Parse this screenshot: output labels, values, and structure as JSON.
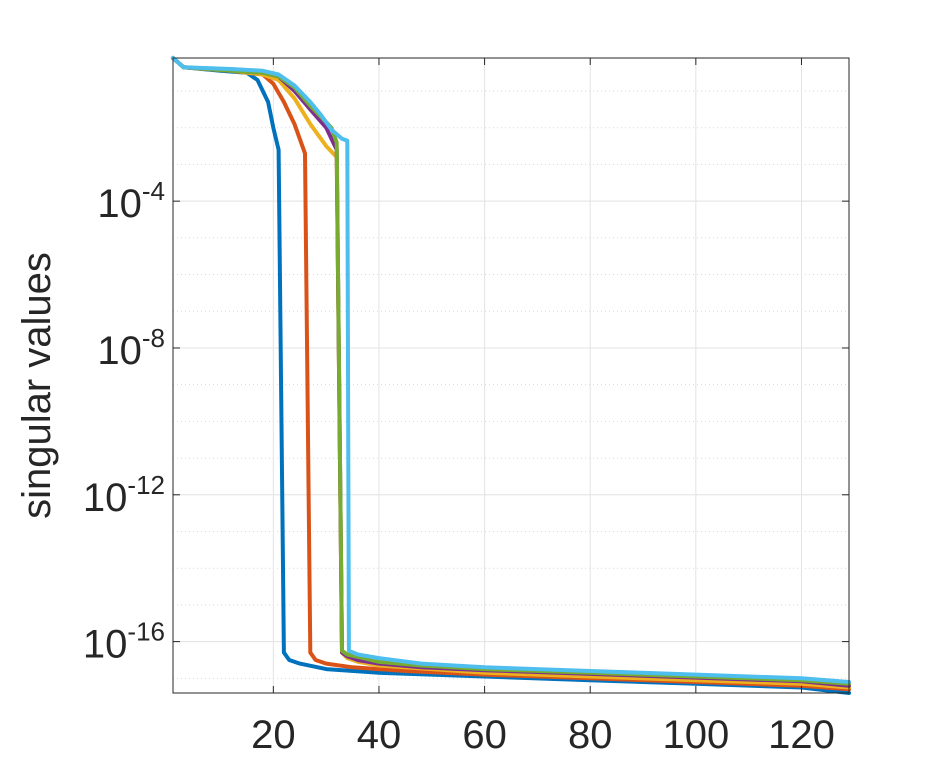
{
  "chart_data": {
    "type": "line",
    "title": "",
    "xlabel": "",
    "ylabel": "singular values",
    "xlim": [
      1,
      129
    ],
    "ylim_log10": [
      -17.4,
      -0.1
    ],
    "y_scale": "log",
    "grid": true,
    "minor_grid": true,
    "box": true,
    "x_ticks": [
      20,
      40,
      60,
      80,
      100,
      120
    ],
    "y_ticks": [
      {
        "value": -4,
        "base": "10",
        "exp": "-4"
      },
      {
        "value": -8,
        "base": "10",
        "exp": "-8"
      },
      {
        "value": -12,
        "base": "10",
        "exp": "-12"
      },
      {
        "value": -16,
        "base": "10",
        "exp": "-16"
      }
    ],
    "series": [
      {
        "color": "#0072BD",
        "points": [
          [
            1,
            -0.1
          ],
          [
            3,
            -0.35
          ],
          [
            10,
            -0.45
          ],
          [
            15,
            -0.5
          ],
          [
            17,
            -0.7
          ],
          [
            19,
            -1.3
          ],
          [
            20,
            -2.0
          ],
          [
            21,
            -2.6
          ],
          [
            22,
            -16.3
          ],
          [
            23,
            -16.5
          ],
          [
            25,
            -16.6
          ],
          [
            30,
            -16.75
          ],
          [
            40,
            -16.85
          ],
          [
            60,
            -16.95
          ],
          [
            80,
            -17.05
          ],
          [
            100,
            -17.15
          ],
          [
            120,
            -17.25
          ],
          [
            129,
            -17.4
          ]
        ]
      },
      {
        "color": "#D95319",
        "points": [
          [
            1,
            -0.1
          ],
          [
            3,
            -0.35
          ],
          [
            12,
            -0.45
          ],
          [
            18,
            -0.55
          ],
          [
            20,
            -0.8
          ],
          [
            22,
            -1.3
          ],
          [
            24,
            -1.9
          ],
          [
            26,
            -2.7
          ],
          [
            27,
            -16.3
          ],
          [
            28,
            -16.5
          ],
          [
            30,
            -16.6
          ],
          [
            35,
            -16.7
          ],
          [
            45,
            -16.8
          ],
          [
            60,
            -16.9
          ],
          [
            80,
            -17.0
          ],
          [
            100,
            -17.1
          ],
          [
            120,
            -17.2
          ],
          [
            129,
            -17.3
          ]
        ]
      },
      {
        "color": "#EDB120",
        "points": [
          [
            1,
            -0.1
          ],
          [
            3,
            -0.35
          ],
          [
            12,
            -0.45
          ],
          [
            18,
            -0.55
          ],
          [
            21,
            -0.7
          ],
          [
            24,
            -1.2
          ],
          [
            27,
            -1.9
          ],
          [
            30,
            -2.5
          ],
          [
            32,
            -2.8
          ],
          [
            33,
            -16.3
          ],
          [
            34,
            -16.45
          ],
          [
            36,
            -16.55
          ],
          [
            40,
            -16.65
          ],
          [
            50,
            -16.75
          ],
          [
            60,
            -16.85
          ],
          [
            80,
            -16.95
          ],
          [
            100,
            -17.05
          ],
          [
            120,
            -17.15
          ],
          [
            129,
            -17.25
          ]
        ]
      },
      {
        "color": "#7E2F8E",
        "points": [
          [
            1,
            -0.1
          ],
          [
            3,
            -0.35
          ],
          [
            12,
            -0.45
          ],
          [
            18,
            -0.5
          ],
          [
            21,
            -0.6
          ],
          [
            24,
            -1.0
          ],
          [
            27,
            -1.5
          ],
          [
            30,
            -2.0
          ],
          [
            32,
            -2.6
          ],
          [
            33,
            -16.3
          ],
          [
            34,
            -16.4
          ],
          [
            36,
            -16.5
          ],
          [
            40,
            -16.6
          ],
          [
            48,
            -16.7
          ],
          [
            60,
            -16.78
          ],
          [
            80,
            -16.88
          ],
          [
            100,
            -16.98
          ],
          [
            120,
            -17.08
          ],
          [
            129,
            -17.2
          ]
        ]
      },
      {
        "color": "#77AC30",
        "points": [
          [
            1,
            -0.1
          ],
          [
            3,
            -0.35
          ],
          [
            12,
            -0.45
          ],
          [
            18,
            -0.5
          ],
          [
            21,
            -0.6
          ],
          [
            24,
            -0.9
          ],
          [
            27,
            -1.4
          ],
          [
            29,
            -1.7
          ],
          [
            31,
            -2.0
          ],
          [
            32,
            -2.4
          ],
          [
            33,
            -16.25
          ],
          [
            34,
            -16.35
          ],
          [
            37,
            -16.45
          ],
          [
            40,
            -16.55
          ],
          [
            48,
            -16.65
          ],
          [
            60,
            -16.75
          ],
          [
            80,
            -16.85
          ],
          [
            100,
            -16.95
          ],
          [
            120,
            -17.05
          ],
          [
            129,
            -17.15
          ]
        ]
      },
      {
        "color": "#4DBEEE",
        "points": [
          [
            1,
            -0.1
          ],
          [
            3,
            -0.35
          ],
          [
            12,
            -0.4
          ],
          [
            18,
            -0.45
          ],
          [
            21,
            -0.55
          ],
          [
            24,
            -0.85
          ],
          [
            27,
            -1.3
          ],
          [
            29,
            -1.65
          ],
          [
            31,
            -2.05
          ],
          [
            33,
            -2.3
          ],
          [
            34,
            -2.35
          ],
          [
            34.3,
            -16.25
          ],
          [
            36,
            -16.35
          ],
          [
            40,
            -16.45
          ],
          [
            48,
            -16.6
          ],
          [
            60,
            -16.7
          ],
          [
            80,
            -16.8
          ],
          [
            100,
            -16.9
          ],
          [
            120,
            -17.0
          ],
          [
            129,
            -17.1
          ]
        ]
      }
    ]
  }
}
